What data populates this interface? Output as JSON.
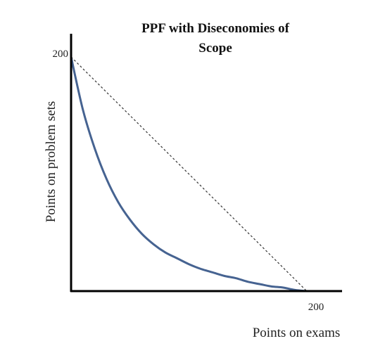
{
  "chart_data": {
    "type": "line",
    "title_lines": [
      "PPF with Diseconomies of",
      "Scope"
    ],
    "xlabel": "Points on exams",
    "ylabel": "Points on problem sets",
    "xlim": [
      0,
      230
    ],
    "ylim": [
      0,
      200
    ],
    "x_ticks": [
      "200"
    ],
    "y_ticks": [
      "200"
    ],
    "grid": false,
    "legend": "none",
    "series": [
      {
        "style": "solid",
        "color": "#466391",
        "x": [
          0,
          10,
          20,
          30,
          40,
          50,
          60,
          70,
          80,
          90,
          100,
          110,
          120,
          130,
          140,
          150,
          160,
          170,
          180,
          190,
          200
        ],
        "y": [
          200,
          155,
          122,
          96,
          76,
          61,
          49,
          40,
          33,
          28,
          23,
          19,
          16,
          13,
          11,
          8,
          6,
          4,
          3,
          1,
          0
        ]
      },
      {
        "style": "dashed",
        "color": "#333333",
        "x": [
          0,
          200
        ],
        "y": [
          200,
          0
        ]
      }
    ]
  }
}
